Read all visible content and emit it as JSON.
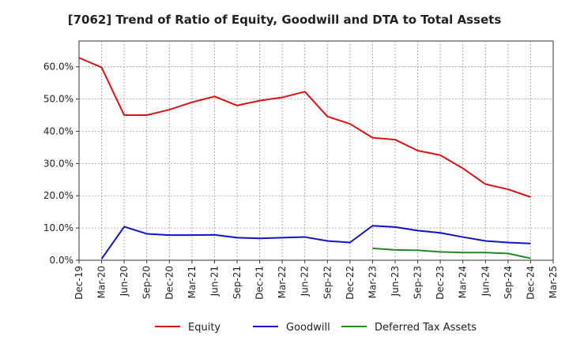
{
  "chart_data": {
    "type": "line",
    "title": "[7062]  Trend of Ratio of Equity, Goodwill and DTA to Total Assets",
    "xlabel": "",
    "ylabel": "",
    "ylim": [
      0,
      68
    ],
    "yticks": [
      0,
      10,
      20,
      30,
      40,
      50,
      60
    ],
    "ytick_labels": [
      "0.0%",
      "10.0%",
      "20.0%",
      "30.0%",
      "40.0%",
      "50.0%",
      "60.0%"
    ],
    "x_categories": [
      "Dec-19",
      "Mar-20",
      "Jun-20",
      "Sep-20",
      "Dec-20",
      "Mar-21",
      "Jun-21",
      "Sep-21",
      "Dec-21",
      "Mar-22",
      "Jun-22",
      "Sep-22",
      "Dec-22",
      "Mar-23",
      "Jun-23",
      "Sep-23",
      "Dec-23",
      "Mar-24",
      "Jun-24",
      "Sep-24",
      "Dec-24",
      "Mar-25"
    ],
    "grid": true,
    "legend_position": "bottom",
    "series": [
      {
        "name": "Equity",
        "color": "#dd1111",
        "values": [
          62.8,
          59.8,
          45.0,
          45.0,
          46.7,
          49.0,
          50.8,
          48.0,
          49.5,
          50.5,
          52.3,
          44.6,
          42.3,
          38.0,
          37.4,
          34.0,
          32.6,
          28.5,
          23.6,
          22.0,
          19.6,
          null
        ]
      },
      {
        "name": "Goodwill",
        "color": "#1111cc",
        "values": [
          null,
          0.4,
          10.4,
          8.2,
          7.8,
          7.8,
          7.9,
          7.0,
          6.8,
          7.0,
          7.2,
          6.0,
          5.5,
          10.7,
          10.3,
          9.2,
          8.5,
          7.2,
          6.0,
          5.5,
          5.2,
          null
        ]
      },
      {
        "name": "Deferred Tax Assets",
        "color": "#228822",
        "values": [
          null,
          null,
          null,
          null,
          null,
          null,
          null,
          null,
          null,
          null,
          null,
          null,
          null,
          3.7,
          3.2,
          3.1,
          2.6,
          2.4,
          2.4,
          2.1,
          0.6,
          null
        ]
      }
    ]
  }
}
